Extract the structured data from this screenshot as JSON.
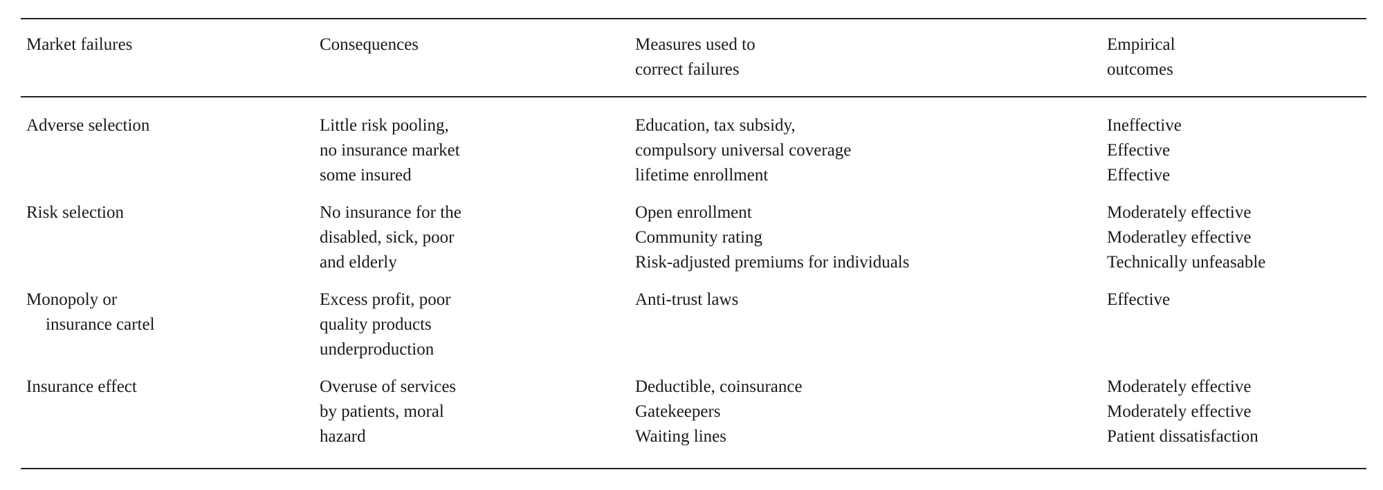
{
  "table": {
    "headers": {
      "col1": [
        "Market failures"
      ],
      "col2": [
        "Consequences"
      ],
      "col3": [
        "Measures used to",
        "correct failures"
      ],
      "col4": [
        "Empirical",
        "outcomes"
      ]
    },
    "rows": [
      {
        "failure": [
          "Adverse selection"
        ],
        "consequences": [
          "Little risk pooling,",
          "no insurance market",
          "some insured"
        ],
        "measures": [
          "Education, tax subsidy,",
          "compulsory universal coverage",
          "lifetime enrollment"
        ],
        "outcomes": [
          "Ineffective",
          "Effective",
          "Effective"
        ]
      },
      {
        "failure": [
          "Risk selection"
        ],
        "consequences": [
          "No insurance for the",
          "disabled, sick, poor",
          "and elderly"
        ],
        "measures": [
          "Open enrollment",
          "Community rating",
          "Risk-adjusted premiums for individuals"
        ],
        "outcomes": [
          "Moderately effective",
          "Moderatley effective",
          "Technically unfeasable"
        ]
      },
      {
        "failure": [
          "Monopoly or",
          "insurance cartel"
        ],
        "consequences": [
          "Excess profit, poor",
          "quality products",
          "underproduction"
        ],
        "measures": [
          "Anti-trust laws"
        ],
        "outcomes": [
          "Effective"
        ]
      },
      {
        "failure": [
          "Insurance effect"
        ],
        "consequences": [
          "Overuse of services",
          "by patients, moral",
          "hazard"
        ],
        "measures": [
          "Deductible, coinsurance",
          "Gatekeepers",
          "Waiting lines"
        ],
        "outcomes": [
          "Moderately effective",
          "Moderately effective",
          "Patient dissatisfaction"
        ]
      }
    ]
  }
}
